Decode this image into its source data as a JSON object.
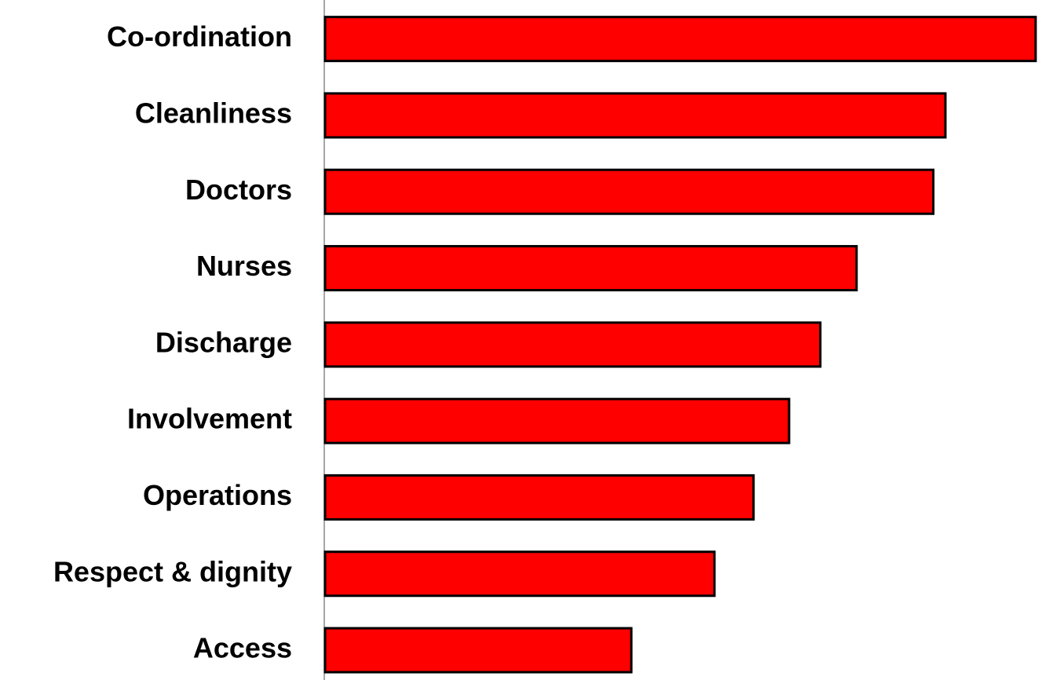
{
  "chart_data": {
    "type": "barh",
    "categories": [
      "Co-ordination",
      "Cleanliness",
      "Doctors",
      "Nurses",
      "Discharge",
      "Involvement",
      "Operations",
      "Respect & dignity",
      "Access"
    ],
    "values": [
      100,
      87.3,
      85.6,
      74.8,
      69.7,
      65.3,
      60.3,
      54.8,
      43.1
    ],
    "color": "#ff0000",
    "xlim": [
      0,
      100
    ]
  }
}
